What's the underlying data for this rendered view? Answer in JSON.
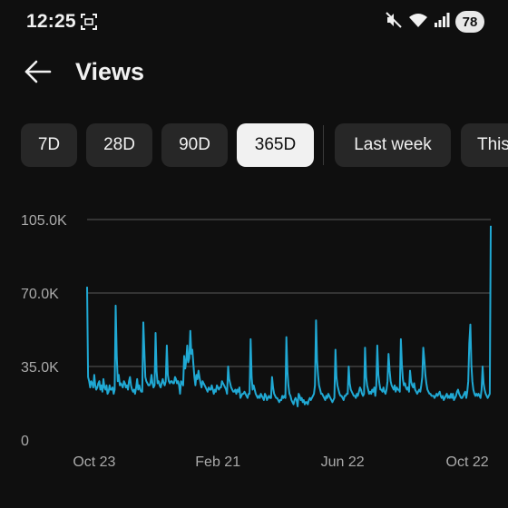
{
  "status_bar": {
    "time": "12:25",
    "battery": "78",
    "icons": [
      "screenshot-icon",
      "mute-icon",
      "wifi-icon",
      "signal-icon",
      "battery-icon"
    ]
  },
  "header": {
    "back_icon": "arrow-left-icon",
    "title": "Views"
  },
  "chips": [
    {
      "label": "7D",
      "selected": false
    },
    {
      "label": "28D",
      "selected": false
    },
    {
      "label": "90D",
      "selected": false
    },
    {
      "label": "365D",
      "selected": true
    },
    {
      "label": "Last week",
      "selected": false
    },
    {
      "label": "This",
      "selected": false
    }
  ],
  "colors": {
    "background": "#0f0f0f",
    "line": "#20a9d4",
    "chip_bg": "#272727",
    "chip_selected_bg": "#f1f1f1",
    "grid": "#5a5a5a"
  },
  "chart_data": {
    "type": "line",
    "title": "",
    "xlabel": "",
    "ylabel": "",
    "ylim": [
      0,
      105000
    ],
    "y_ticks": [
      {
        "value": 0,
        "label": "0"
      },
      {
        "value": 35000,
        "label": "35.0K"
      },
      {
        "value": 70000,
        "label": "70.0K"
      },
      {
        "value": 105000,
        "label": "105.0K"
      }
    ],
    "x_ticks": [
      {
        "index": 7,
        "label": "Oct 23"
      },
      {
        "index": 128,
        "label": "Feb 21"
      },
      {
        "index": 250,
        "label": "Jun 22"
      },
      {
        "index": 372,
        "label": "Oct 22"
      }
    ],
    "grid": true,
    "series": [
      {
        "values": [
          73000,
          30000,
          28000,
          25000,
          28000,
          27000,
          25000,
          31000,
          26000,
          24000,
          25000,
          27000,
          28000,
          24000,
          26000,
          23000,
          29000,
          25000,
          24000,
          26000,
          22000,
          23000,
          26000,
          24000,
          24000,
          25000,
          22000,
          24000,
          64000,
          40000,
          28000,
          31000,
          26000,
          27000,
          26000,
          25000,
          28000,
          27000,
          25000,
          26000,
          24000,
          28000,
          30000,
          26000,
          24000,
          23000,
          24000,
          22000,
          25000,
          29000,
          24000,
          26000,
          24000,
          23000,
          23000,
          56000,
          43000,
          30000,
          28000,
          27000,
          26000,
          26000,
          27000,
          31000,
          27000,
          25000,
          26000,
          51000,
          33000,
          27000,
          28000,
          26000,
          25000,
          27000,
          29000,
          27000,
          26000,
          28000,
          45000,
          31000,
          28000,
          27000,
          28000,
          28000,
          27000,
          27000,
          30000,
          29000,
          27000,
          28000,
          26000,
          22000,
          28000,
          27000,
          26000,
          40000,
          34000,
          38000,
          45000,
          37000,
          39000,
          52000,
          41000,
          43000,
          36000,
          30000,
          26000,
          31000,
          29000,
          33000,
          30000,
          27000,
          25000,
          28000,
          27000,
          26000,
          25000,
          24000,
          23000,
          25000,
          24000,
          24000,
          26000,
          24000,
          22000,
          24000,
          23000,
          26000,
          25000,
          24000,
          25000,
          25000,
          28000,
          27000,
          26000,
          25000,
          24000,
          22000,
          35000,
          29000,
          27000,
          25000,
          24000,
          23000,
          23000,
          24000,
          22000,
          24000,
          23000,
          25000,
          20000,
          21000,
          22000,
          22000,
          23000,
          22000,
          21000,
          20000,
          22000,
          22000,
          48000,
          30000,
          24000,
          26000,
          24000,
          22000,
          21000,
          20000,
          21000,
          20000,
          22000,
          21000,
          20000,
          19000,
          22000,
          21000,
          19000,
          20000,
          21000,
          20000,
          20000,
          30000,
          25000,
          22000,
          21000,
          20000,
          20000,
          19000,
          18000,
          19000,
          19000,
          21000,
          20000,
          21000,
          20000,
          49000,
          33000,
          26000,
          22000,
          21000,
          19000,
          18000,
          17000,
          19000,
          20000,
          19000,
          16000,
          22000,
          21000,
          19000,
          20000,
          18000,
          19000,
          17000,
          18000,
          18000,
          17000,
          19000,
          20000,
          19000,
          20000,
          21000,
          22000,
          26000,
          57000,
          38000,
          31000,
          26000,
          24000,
          22000,
          22000,
          21000,
          20000,
          19000,
          21000,
          20000,
          22000,
          21000,
          20000,
          19000,
          18000,
          19000,
          20000,
          43000,
          30000,
          26000,
          24000,
          22000,
          21000,
          21000,
          20000,
          19000,
          21000,
          21000,
          22000,
          22000,
          35000,
          27000,
          24000,
          23000,
          22000,
          21000,
          21000,
          20000,
          22000,
          21000,
          23000,
          25000,
          24000,
          22000,
          21000,
          22000,
          44000,
          30000,
          26000,
          24000,
          22000,
          23000,
          22000,
          24000,
          23000,
          25000,
          21000,
          26000,
          45000,
          31000,
          27000,
          24000,
          24000,
          23000,
          25000,
          23000,
          22000,
          24000,
          28000,
          41000,
          33000,
          28000,
          26000,
          25000,
          24000,
          26000,
          23000,
          25000,
          24000,
          24000,
          23000,
          48000,
          36000,
          29000,
          26000,
          27000,
          25000,
          24000,
          25000,
          23000,
          33000,
          28000,
          26000,
          25000,
          27000,
          24000,
          23000,
          22000,
          23000,
          24000,
          23000,
          26000,
          30000,
          44000,
          38000,
          31000,
          27000,
          24000,
          23000,
          22000,
          22000,
          21000,
          21000,
          21000,
          20000,
          21000,
          22000,
          21000,
          22000,
          23000,
          21000,
          20000,
          21000,
          19000,
          20000,
          21000,
          22000,
          20000,
          21000,
          20000,
          22000,
          20000,
          22000,
          19000,
          20000,
          21000,
          23000,
          24000,
          22000,
          21000,
          20000,
          20000,
          21000,
          22000,
          23000,
          20000,
          23000,
          28000,
          46000,
          55000,
          36000,
          28000,
          24000,
          22000,
          21000,
          22000,
          21000,
          22000,
          21000,
          20000,
          24000,
          35000,
          27000,
          24000,
          22000,
          21000,
          20000,
          21000,
          22000,
          102000
        ]
      }
    ]
  }
}
